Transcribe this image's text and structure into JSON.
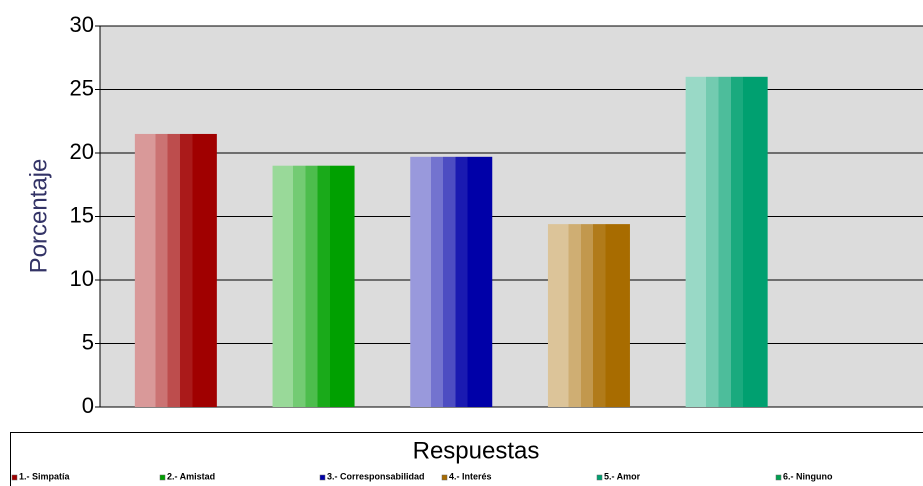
{
  "chart_data": {
    "type": "bar",
    "y_label": "Porcentaje",
    "x_label": "Respuestas",
    "categories": [
      "1.- Simpatía",
      "2.- Amistad",
      "3.- Corresponsabilidad",
      "4.- Interés",
      "5.- Amor",
      "6.- Ninguno"
    ],
    "values": [
      21.5,
      19,
      19.7,
      14.4,
      26,
      0
    ],
    "colors": [
      "#a00000",
      "#00a000",
      "#0000a8",
      "#a86c00",
      "#00a070",
      "#00a050"
    ],
    "ylim": [
      0,
      30
    ],
    "yticks": [
      0,
      5,
      10,
      15,
      20,
      25,
      30
    ],
    "grid": true,
    "legend": "bottom"
  }
}
